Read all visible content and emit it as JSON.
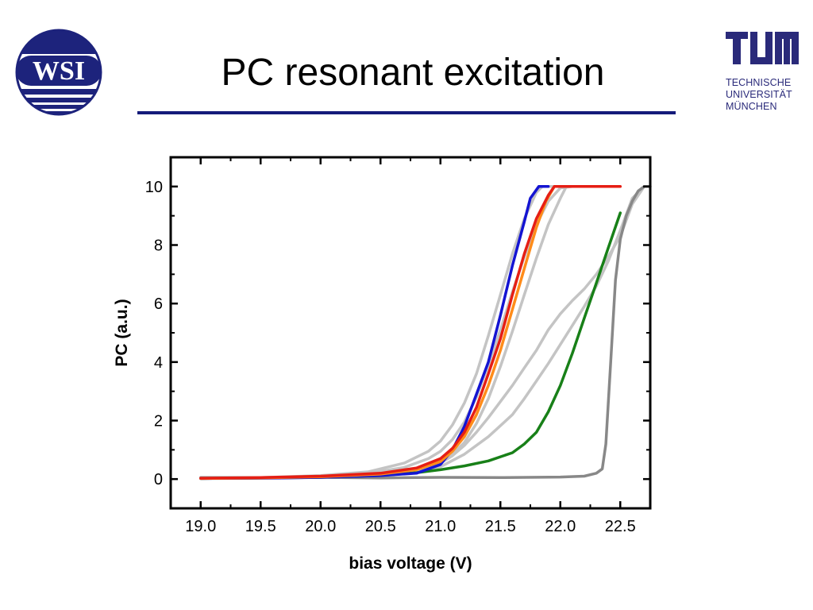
{
  "slide": {
    "title": "PC resonant excitation",
    "rule_color": "#141b7a"
  },
  "logos": {
    "left": {
      "text": "WSI",
      "color": "#1d237c"
    },
    "right": {
      "mark": "TUM",
      "lines": [
        "TECHNISCHE",
        "UNIVERSITÄT",
        "MÜNCHEN"
      ],
      "color": "#2a2a7a"
    }
  },
  "chart_data": {
    "type": "line",
    "xlabel": "bias voltage (V)",
    "ylabel": "PC (a.u.)",
    "xlim": [
      18.75,
      22.75
    ],
    "ylim": [
      -1,
      11
    ],
    "xticks": [
      19.0,
      19.5,
      20.0,
      20.5,
      21.0,
      21.5,
      22.0,
      22.5
    ],
    "xtick_labels": [
      "19.0",
      "19.5",
      "20.0",
      "20.5",
      "21.0",
      "21.5",
      "22.0",
      "22.5"
    ],
    "yticks": [
      0,
      2,
      4,
      6,
      8,
      10
    ],
    "ytick_labels": [
      "0",
      "2",
      "4",
      "6",
      "8",
      "10"
    ],
    "grid": false,
    "legend": "none",
    "series": [
      {
        "color": "#c4c4c4",
        "width": 3.5,
        "x": [
          19.0,
          19.5,
          20.0,
          20.4,
          20.7,
          20.9,
          21.0,
          21.1,
          21.2,
          21.3,
          21.4,
          21.5,
          21.6,
          21.7,
          21.8,
          21.85,
          22.0
        ],
        "y": [
          0.02,
          0.05,
          0.12,
          0.25,
          0.55,
          0.95,
          1.3,
          1.85,
          2.6,
          3.6,
          4.9,
          6.3,
          7.7,
          8.9,
          9.8,
          10.0,
          10.0
        ]
      },
      {
        "color": "#c4c4c4",
        "width": 3.5,
        "x": [
          19.0,
          19.5,
          20.0,
          20.4,
          20.7,
          20.9,
          21.0,
          21.1,
          21.2,
          21.3,
          21.4,
          21.5,
          21.6,
          21.7,
          21.8,
          21.9,
          22.0,
          22.1
        ],
        "y": [
          0.02,
          0.04,
          0.1,
          0.2,
          0.4,
          0.7,
          0.95,
          1.35,
          1.95,
          2.8,
          3.9,
          5.1,
          6.4,
          7.6,
          8.7,
          9.5,
          9.95,
          10.0
        ]
      },
      {
        "color": "#c4c4c4",
        "width": 3.5,
        "x": [
          19.0,
          19.5,
          20.0,
          20.5,
          20.8,
          21.0,
          21.1,
          21.2,
          21.3,
          21.4,
          21.5,
          21.6,
          21.7,
          21.8,
          21.9,
          22.0,
          22.05,
          22.2
        ],
        "y": [
          0.02,
          0.04,
          0.08,
          0.18,
          0.35,
          0.6,
          0.85,
          1.25,
          1.9,
          2.75,
          3.85,
          5.05,
          6.3,
          7.55,
          8.7,
          9.6,
          10.0,
          10.0
        ]
      },
      {
        "color": "#c4c4c4",
        "width": 3.5,
        "x": [
          19.0,
          19.5,
          20.0,
          20.5,
          20.8,
          21.0,
          21.1,
          21.2,
          21.3,
          21.4,
          21.5,
          21.6,
          21.7,
          21.8,
          21.9,
          22.0,
          22.1,
          22.2,
          22.3,
          22.4,
          22.5,
          22.6,
          22.7
        ],
        "y": [
          0.02,
          0.04,
          0.08,
          0.15,
          0.3,
          0.55,
          0.8,
          1.15,
          1.6,
          2.1,
          2.65,
          3.2,
          3.8,
          4.4,
          5.1,
          5.65,
          6.1,
          6.5,
          7.0,
          7.6,
          8.3,
          9.4,
          10.0
        ]
      },
      {
        "color": "#c4c4c4",
        "width": 3.5,
        "x": [
          19.0,
          19.5,
          20.0,
          20.5,
          20.8,
          21.0,
          21.2,
          21.4,
          21.6,
          21.7,
          21.8,
          21.9,
          22.0,
          22.1,
          22.2,
          22.3,
          22.4,
          22.5,
          22.6,
          22.7
        ],
        "y": [
          0.02,
          0.04,
          0.07,
          0.14,
          0.26,
          0.42,
          0.85,
          1.45,
          2.2,
          2.75,
          3.35,
          3.95,
          4.6,
          5.25,
          5.9,
          6.6,
          7.45,
          8.5,
          9.6,
          10.0
        ]
      },
      {
        "color": "#888888",
        "width": 3.5,
        "x": [
          19.0,
          19.5,
          20.0,
          20.5,
          21.0,
          21.5,
          22.0,
          22.2,
          22.3,
          22.35,
          22.38,
          22.42,
          22.46,
          22.5,
          22.55,
          22.6,
          22.65,
          22.7,
          22.75
        ],
        "y": [
          0.05,
          0.05,
          0.06,
          0.04,
          0.06,
          0.05,
          0.07,
          0.1,
          0.2,
          0.35,
          1.2,
          4.0,
          6.8,
          8.2,
          9.0,
          9.5,
          9.85,
          10.0,
          10.0
        ]
      },
      {
        "color": "#188018",
        "width": 3.5,
        "x": [
          19.0,
          19.5,
          20.0,
          20.5,
          20.8,
          21.0,
          21.2,
          21.4,
          21.6,
          21.7,
          21.8,
          21.9,
          22.0,
          22.1,
          22.2,
          22.3,
          22.4,
          22.45,
          22.5
        ],
        "y": [
          0.02,
          0.04,
          0.06,
          0.12,
          0.22,
          0.32,
          0.45,
          0.62,
          0.9,
          1.2,
          1.6,
          2.3,
          3.2,
          4.3,
          5.5,
          6.7,
          7.9,
          8.5,
          9.1
        ]
      },
      {
        "color": "#1414d2",
        "width": 3.5,
        "x": [
          19.0,
          19.5,
          20.0,
          20.5,
          20.8,
          21.0,
          21.1,
          21.2,
          21.3,
          21.4,
          21.5,
          21.6,
          21.7,
          21.75,
          21.82,
          21.9
        ],
        "y": [
          0.02,
          0.03,
          0.06,
          0.12,
          0.2,
          0.5,
          1.0,
          1.8,
          2.9,
          4.0,
          5.6,
          7.3,
          8.8,
          9.6,
          10.0,
          10.0
        ]
      },
      {
        "color": "#ff8c1a",
        "width": 3.5,
        "x": [
          19.0,
          19.5,
          20.0,
          20.5,
          20.8,
          21.0,
          21.1,
          21.2,
          21.3,
          21.4,
          21.5,
          21.6,
          21.7,
          21.8,
          21.88,
          21.95,
          22.0,
          22.4
        ],
        "y": [
          0.02,
          0.04,
          0.08,
          0.17,
          0.32,
          0.6,
          0.95,
          1.45,
          2.2,
          3.2,
          4.4,
          5.8,
          7.2,
          8.6,
          9.5,
          10.0,
          10.0,
          10.0
        ]
      },
      {
        "color": "#e61e14",
        "width": 3.5,
        "x": [
          19.0,
          19.5,
          20.0,
          20.5,
          20.8,
          21.0,
          21.1,
          21.2,
          21.3,
          21.4,
          21.5,
          21.6,
          21.7,
          21.8,
          21.9,
          21.95,
          22.0,
          22.5
        ],
        "y": [
          0.03,
          0.05,
          0.1,
          0.2,
          0.38,
          0.7,
          1.05,
          1.6,
          2.45,
          3.6,
          4.8,
          6.3,
          7.7,
          8.9,
          9.7,
          10.0,
          10.0,
          10.0
        ]
      }
    ]
  }
}
